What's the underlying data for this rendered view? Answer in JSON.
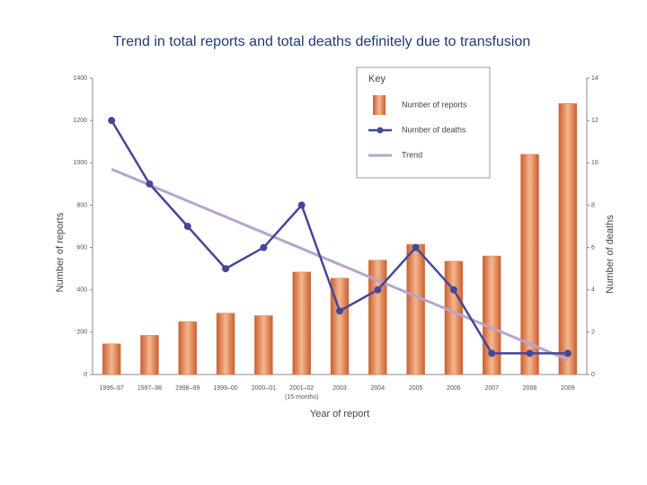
{
  "chart_data": {
    "type": "bar_line",
    "title": "Trend in total reports and total deaths definitely due to transfusion",
    "x_label": "Year of report",
    "y_label": "Number of reports",
    "y2_label": "Number of deaths",
    "legend_title": "Key",
    "categories": [
      "1996–97",
      "1997–98",
      "1998–99",
      "1999–00",
      "2000–01",
      "2001–02",
      "2003",
      "2004",
      "2005",
      "2006",
      "2007",
      "2008",
      "2009"
    ],
    "category_note": "(15 months)",
    "series": [
      {
        "name": "Number of reports",
        "type": "bar",
        "color": "#d9774a",
        "values": [
          145,
          185,
          250,
          290,
          278,
          484,
          455,
          540,
          615,
          535,
          560,
          1040,
          1280
        ]
      },
      {
        "name": "Number of deaths",
        "type": "line",
        "axis": "y2",
        "color": "#45479a",
        "values": [
          12,
          9,
          7,
          5,
          6,
          8,
          3,
          4,
          6,
          4,
          1,
          1,
          1
        ]
      },
      {
        "name": "Trend",
        "type": "trend",
        "axis": "y2",
        "color": "#b9a3cc",
        "values": [
          9.7,
          8.95,
          8.2,
          7.45,
          6.7,
          5.95,
          5.2,
          4.45,
          3.7,
          2.95,
          2.2,
          1.45,
          0.7
        ]
      }
    ],
    "ylim": [
      0,
      1400
    ],
    "yticks": [
      0,
      200,
      400,
      600,
      800,
      1000,
      1200,
      1400
    ],
    "y2lim": [
      0,
      14
    ],
    "y2ticks": [
      0,
      2,
      4,
      6,
      8,
      10,
      12,
      14
    ]
  }
}
